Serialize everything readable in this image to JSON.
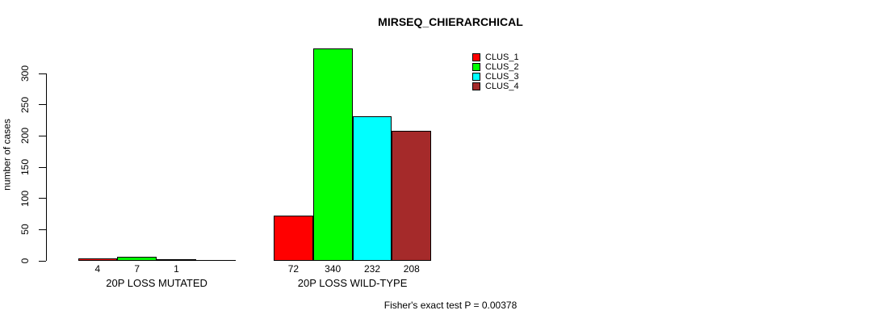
{
  "chart_data": {
    "type": "bar",
    "title": "MIRSEQ_CHIERARCHICAL",
    "ylabel": "number of cases",
    "xlabel": "",
    "yticks": [
      0,
      50,
      100,
      150,
      200,
      250,
      300
    ],
    "ylim": [
      0,
      340
    ],
    "grid": false,
    "legend_position": "top-right",
    "legend": [
      {
        "name": "CLUS_1",
        "color": "#FF0000"
      },
      {
        "name": "CLUS_2",
        "color": "#00FF00"
      },
      {
        "name": "CLUS_3",
        "color": "#00FFFF"
      },
      {
        "name": "CLUS_4",
        "color": "#A52A2A"
      }
    ],
    "categories": [
      "20P LOSS MUTATED",
      "20P LOSS WILD-TYPE"
    ],
    "groups": [
      {
        "label": "20P LOSS MUTATED",
        "values": [
          4,
          7,
          1,
          0
        ],
        "bar_labels": [
          "4",
          "7",
          "1",
          ""
        ]
      },
      {
        "label": "20P LOSS WILD-TYPE",
        "values": [
          72,
          340,
          232,
          208
        ],
        "bar_labels": [
          "72",
          "340",
          "232",
          "208"
        ]
      }
    ],
    "annotation": "Fisher's exact test P = 0.00378"
  }
}
